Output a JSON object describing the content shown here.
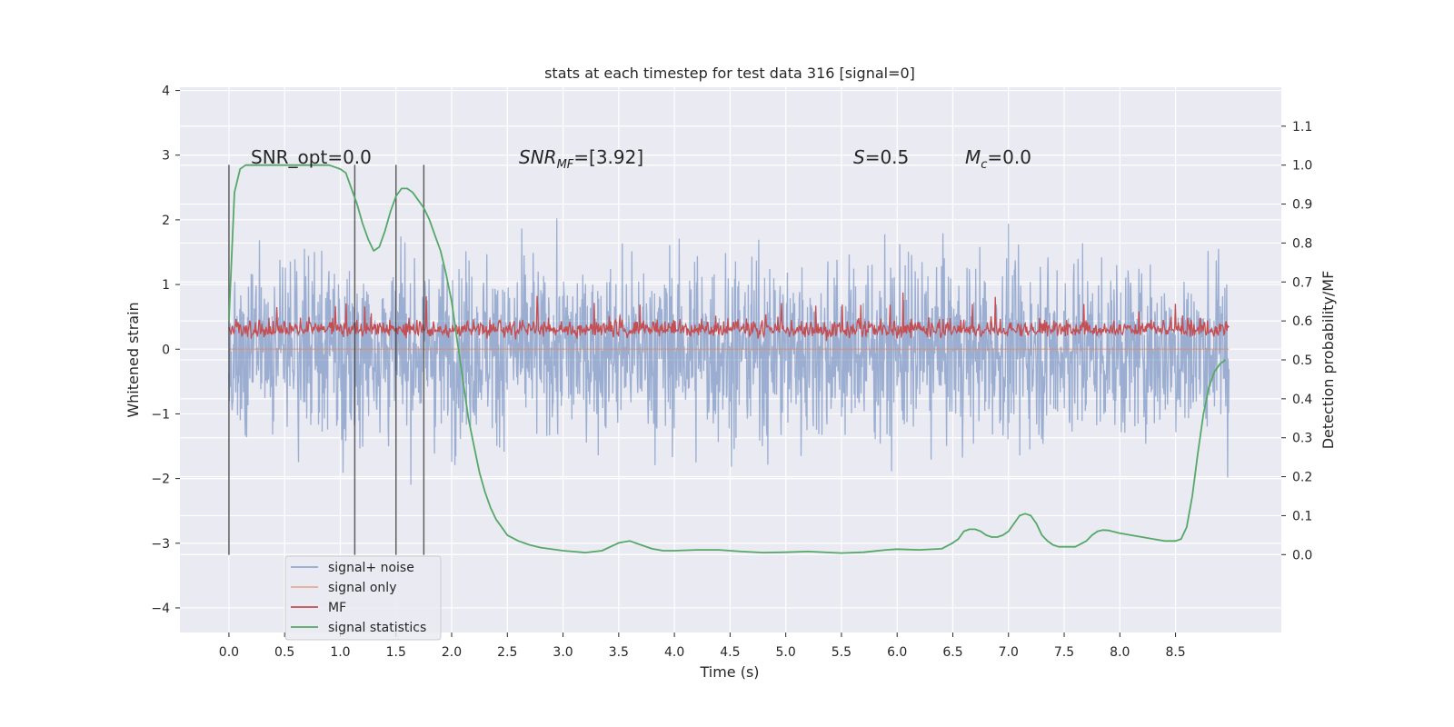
{
  "chart_data": {
    "type": "line",
    "title": "stats at each timestep for test data 316 [signal=0]",
    "xlabel": "Time (s)",
    "ylabel": "Whitened strain",
    "y2label": "Detection probability/MF",
    "xlim": [
      -0.44,
      9.45
    ],
    "ylim": [
      -4.38,
      4.05
    ],
    "y2lim": [
      -0.2,
      1.2
    ],
    "x_ticks": [
      "0.0",
      "0.5",
      "1.0",
      "1.5",
      "2.0",
      "2.5",
      "3.0",
      "3.5",
      "4.0",
      "4.5",
      "5.0",
      "5.5",
      "6.0",
      "6.5",
      "7.0",
      "7.5",
      "8.0",
      "8.5"
    ],
    "y_ticks": [
      "4",
      "3",
      "2",
      "1",
      "0",
      "−1",
      "−2",
      "−3",
      "−4"
    ],
    "y2_ticks": [
      "1.1",
      "1.0",
      "0.9",
      "0.8",
      "0.7",
      "0.6",
      "0.5",
      "0.4",
      "0.3",
      "0.2",
      "0.1",
      "0.0"
    ],
    "grid": true,
    "legend_position": "lower-left",
    "annotations": [
      {
        "text": "SNR_opt=0.0"
      },
      {
        "text": "SNR",
        "sub": "MF",
        "rest": "=[3.92]"
      },
      {
        "text": "S",
        "rest": "=0.5"
      },
      {
        "text": "M",
        "sub": "c",
        "rest": "=0.0"
      }
    ],
    "event_lines_x": [
      0.0,
      1.13,
      1.5,
      1.75
    ],
    "series": [
      {
        "name": "signal+ noise",
        "color": "#4c72b0",
        "kind": "noise",
        "y_range": [
          -4.0,
          3.6
        ]
      },
      {
        "name": "signal only",
        "color": "#dd8452",
        "kind": "flat",
        "value": 0.0
      },
      {
        "name": "MF",
        "color": "#c44e52",
        "kind": "mf",
        "y_range": [
          0.0,
          1.0
        ]
      },
      {
        "name": "signal statistics",
        "color": "#55a868",
        "kind": "line",
        "axis": "right",
        "x": [
          0.0,
          0.05,
          0.1,
          0.15,
          0.2,
          0.3,
          0.5,
          0.7,
          0.9,
          1.0,
          1.05,
          1.1,
          1.15,
          1.2,
          1.25,
          1.3,
          1.35,
          1.4,
          1.45,
          1.5,
          1.55,
          1.6,
          1.65,
          1.7,
          1.75,
          1.8,
          1.85,
          1.9,
          1.95,
          2.0,
          2.05,
          2.1,
          2.15,
          2.2,
          2.25,
          2.3,
          2.35,
          2.4,
          2.45,
          2.5,
          2.6,
          2.7,
          2.8,
          3.0,
          3.2,
          3.35,
          3.5,
          3.6,
          3.7,
          3.8,
          3.9,
          4.0,
          4.2,
          4.4,
          4.6,
          4.8,
          5.0,
          5.2,
          5.5,
          5.7,
          5.9,
          6.0,
          6.2,
          6.4,
          6.5,
          6.55,
          6.6,
          6.65,
          6.7,
          6.75,
          6.8,
          6.85,
          6.9,
          6.95,
          7.0,
          7.05,
          7.1,
          7.15,
          7.2,
          7.25,
          7.3,
          7.35,
          7.4,
          7.45,
          7.5,
          7.6,
          7.7,
          7.75,
          7.8,
          7.85,
          7.9,
          8.0,
          8.2,
          8.4,
          8.5,
          8.55,
          8.6,
          8.65,
          8.7,
          8.75,
          8.8,
          8.85,
          8.9,
          8.95
        ],
        "y": [
          0.6,
          0.93,
          0.99,
          1.0,
          1.0,
          1.0,
          1.0,
          1.0,
          1.0,
          0.99,
          0.98,
          0.94,
          0.9,
          0.85,
          0.81,
          0.78,
          0.79,
          0.83,
          0.88,
          0.92,
          0.94,
          0.94,
          0.93,
          0.91,
          0.89,
          0.86,
          0.82,
          0.78,
          0.72,
          0.65,
          0.55,
          0.45,
          0.35,
          0.28,
          0.21,
          0.16,
          0.12,
          0.09,
          0.07,
          0.05,
          0.035,
          0.025,
          0.018,
          0.01,
          0.005,
          0.01,
          0.03,
          0.035,
          0.025,
          0.015,
          0.01,
          0.01,
          0.012,
          0.012,
          0.008,
          0.005,
          0.006,
          0.008,
          0.004,
          0.006,
          0.012,
          0.014,
          0.012,
          0.015,
          0.03,
          0.04,
          0.06,
          0.065,
          0.065,
          0.06,
          0.05,
          0.045,
          0.045,
          0.05,
          0.06,
          0.08,
          0.1,
          0.105,
          0.1,
          0.08,
          0.05,
          0.035,
          0.025,
          0.02,
          0.02,
          0.02,
          0.035,
          0.05,
          0.06,
          0.063,
          0.062,
          0.055,
          0.045,
          0.035,
          0.035,
          0.04,
          0.07,
          0.15,
          0.26,
          0.36,
          0.43,
          0.47,
          0.49,
          0.5
        ]
      }
    ]
  }
}
